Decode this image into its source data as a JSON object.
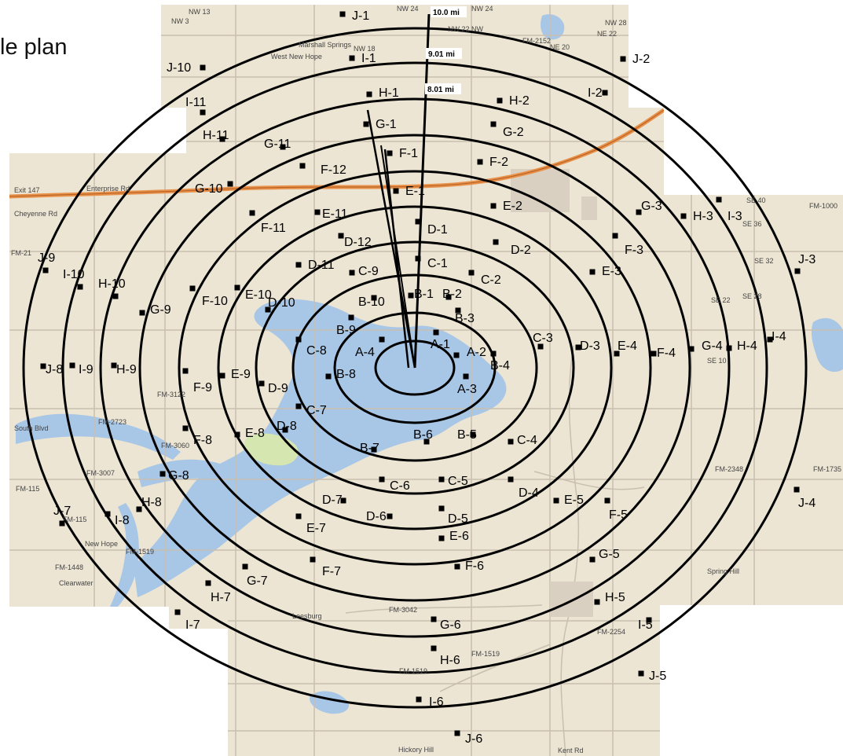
{
  "title": "le plan",
  "colors": {
    "land": "#ece5d3",
    "water": "#a8c6e6",
    "park": "#d6e6b0",
    "highway": "#e8914a",
    "ring": "#000000",
    "road": "#c8bfb0"
  },
  "range_labels": [
    "10.0 mi",
    "9.01 mi",
    "8.01 mi"
  ],
  "map_labels": [
    "NW 3",
    "NW 13",
    "NW 24",
    "NW 24",
    "NW 28",
    "NE 22",
    "NW 22 NW",
    "Marshall Springs",
    "West New Hope",
    "NW 18",
    "FM-2152",
    "NE 20",
    "Exit 147",
    "Enterprise Rd",
    "Cheyenne Rd",
    "FM-21",
    "FM-3122",
    "FM-115",
    "South Blvd",
    "FM-2723",
    "FM-3007",
    "FM-3060",
    "New Hope",
    "Clearwater",
    "FM-1448",
    "FM-1519",
    "Leesburg",
    "FM-3042",
    "FM-1519",
    "FM-1519",
    "FM-2254",
    "Spring Hill",
    "FM-2348",
    "FM-1735",
    "FM-1000",
    "SE 40",
    "SE 36",
    "SE 32",
    "SE 28",
    "SE 22",
    "SE 10",
    "Hickory Hill",
    "Kent Rd",
    "FM-115"
  ],
  "markers": [
    {
      "id": "J-1"
    },
    {
      "id": "J-2"
    },
    {
      "id": "J-10"
    },
    {
      "id": "I-1"
    },
    {
      "id": "I-2"
    },
    {
      "id": "I-11"
    },
    {
      "id": "H-1"
    },
    {
      "id": "H-2"
    },
    {
      "id": "H-11"
    },
    {
      "id": "G-1"
    },
    {
      "id": "G-2"
    },
    {
      "id": "G-11"
    },
    {
      "id": "F-1"
    },
    {
      "id": "F-2"
    },
    {
      "id": "F-12"
    },
    {
      "id": "G-10"
    },
    {
      "id": "E-1"
    },
    {
      "id": "E-2"
    },
    {
      "id": "E-11"
    },
    {
      "id": "F-11"
    },
    {
      "id": "D-1"
    },
    {
      "id": "D-2"
    },
    {
      "id": "D-12"
    },
    {
      "id": "G-3"
    },
    {
      "id": "H-3"
    },
    {
      "id": "I-3"
    },
    {
      "id": "F-3"
    },
    {
      "id": "J-3"
    },
    {
      "id": "C-1"
    },
    {
      "id": "C-2"
    },
    {
      "id": "D-11"
    },
    {
      "id": "E-3"
    },
    {
      "id": "J-9"
    },
    {
      "id": "I-10"
    },
    {
      "id": "C-9"
    },
    {
      "id": "H-10"
    },
    {
      "id": "G-9"
    },
    {
      "id": "F-10"
    },
    {
      "id": "E-10"
    },
    {
      "id": "D-10"
    },
    {
      "id": "B-10"
    },
    {
      "id": "B-1"
    },
    {
      "id": "B-2"
    },
    {
      "id": "B-3"
    },
    {
      "id": "B-9"
    },
    {
      "id": "A-1"
    },
    {
      "id": "C-8"
    },
    {
      "id": "A-4"
    },
    {
      "id": "A-2"
    },
    {
      "id": "C-3"
    },
    {
      "id": "D-3"
    },
    {
      "id": "E-4"
    },
    {
      "id": "F-4"
    },
    {
      "id": "G-4"
    },
    {
      "id": "H-4"
    },
    {
      "id": "I-4"
    },
    {
      "id": "B-4"
    },
    {
      "id": "J-8"
    },
    {
      "id": "I-9"
    },
    {
      "id": "H-9"
    },
    {
      "id": "F-9"
    },
    {
      "id": "E-9"
    },
    {
      "id": "D-9"
    },
    {
      "id": "B-8"
    },
    {
      "id": "A-3"
    },
    {
      "id": "C-7"
    },
    {
      "id": "D-8"
    },
    {
      "id": "E-8"
    },
    {
      "id": "F-8"
    },
    {
      "id": "B-6"
    },
    {
      "id": "B-5"
    },
    {
      "id": "C-4"
    },
    {
      "id": "B-7"
    },
    {
      "id": "G-8"
    },
    {
      "id": "C-6"
    },
    {
      "id": "C-5"
    },
    {
      "id": "D-4"
    },
    {
      "id": "E-5"
    },
    {
      "id": "F-5"
    },
    {
      "id": "J-4"
    },
    {
      "id": "J-7"
    },
    {
      "id": "H-8"
    },
    {
      "id": "I-8"
    },
    {
      "id": "D-7"
    },
    {
      "id": "D-6"
    },
    {
      "id": "D-5"
    },
    {
      "id": "E-7"
    },
    {
      "id": "E-6"
    },
    {
      "id": "F-6"
    },
    {
      "id": "F-7"
    },
    {
      "id": "G-5"
    },
    {
      "id": "G-7"
    },
    {
      "id": "H-7"
    },
    {
      "id": "H-5"
    },
    {
      "id": "I-7"
    },
    {
      "id": "I-5"
    },
    {
      "id": "G-6"
    },
    {
      "id": "H-6"
    },
    {
      "id": "J-5"
    },
    {
      "id": "I-6"
    },
    {
      "id": "J-6"
    }
  ]
}
